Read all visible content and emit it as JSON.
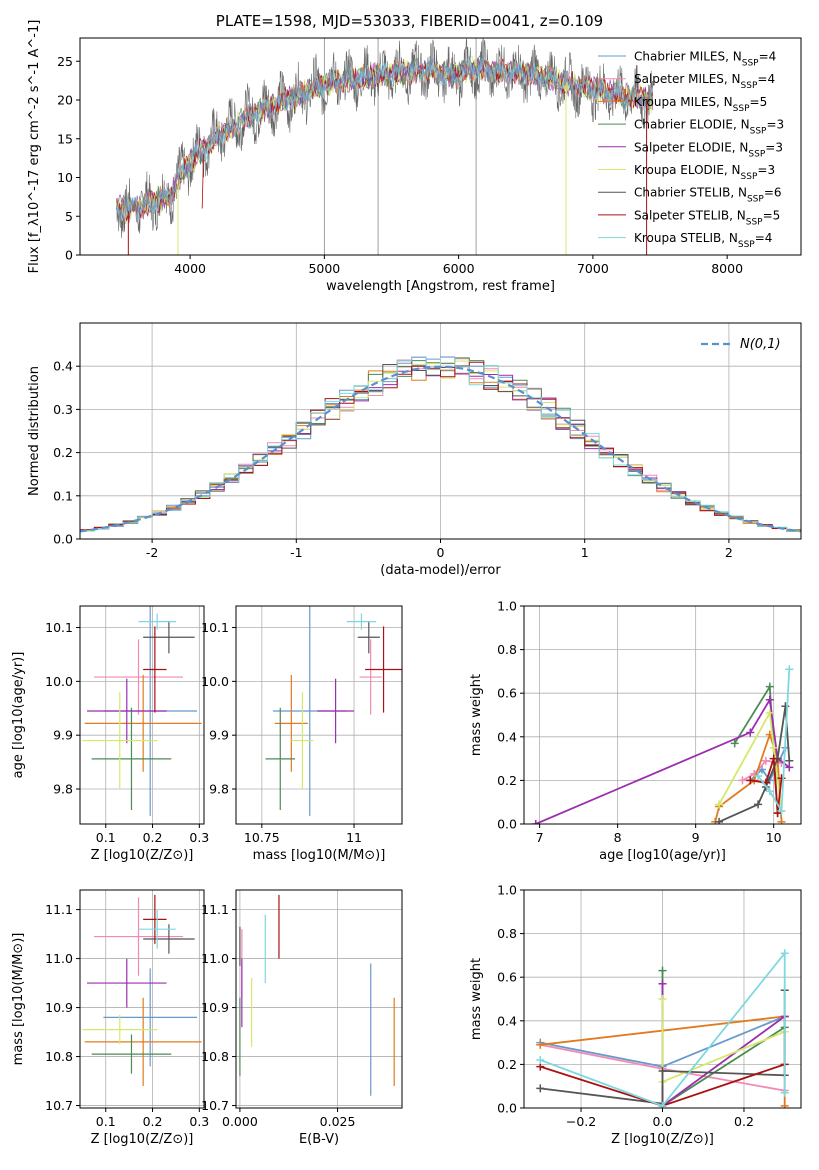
{
  "title": "PLATE=1598, MJD=53033, FIBERID=0041, z=0.109",
  "series_colors": [
    "#6699cc",
    "#f28ab3",
    "#e07b20",
    "#4e8a55",
    "#9b2fae",
    "#d4e96a",
    "#555555",
    "#aa1111",
    "#7fd8df"
  ],
  "chart_data": [
    {
      "type": "line",
      "name": "spectrum",
      "xlabel": "wavelength [Angstrom, rest frame]",
      "ylabel": "Flux [f_λ10^-17 erg cm^-2 s^-1 A^-1]",
      "xlim": [
        3180,
        8550
      ],
      "ylim": [
        0,
        28
      ],
      "xticks": [
        4000,
        5000,
        6000,
        7000,
        8000
      ],
      "yticks": [
        0,
        5,
        10,
        15,
        20,
        25
      ],
      "vlines": [
        5000,
        5400,
        6130
      ],
      "continuum": {
        "x": [
          3450,
          3550,
          3700,
          3850,
          3950,
          4050,
          4200,
          4350,
          4500,
          4650,
          4800,
          4950,
          5100,
          5250,
          5400,
          5600,
          5800,
          5950,
          6100,
          6300,
          6500,
          6700,
          6900,
          7100,
          7300,
          7450
        ],
        "y": [
          6.5,
          5.6,
          6.8,
          7.6,
          11.0,
          13.0,
          15.2,
          17.0,
          18.5,
          19.6,
          20.5,
          21.8,
          22.4,
          22.8,
          23.2,
          23.6,
          23.9,
          23.0,
          24.1,
          23.7,
          23.4,
          22.7,
          21.8,
          21.0,
          20.4,
          20.0
        ]
      },
      "legend": [
        {
          "label": "Chabrier MILES, N_SSP=4",
          "sub": "SSP",
          "pre": "Chabrier MILES, N",
          "post": "=4"
        },
        {
          "label": "Salpeter MILES, N_SSP=4",
          "pre": "Salpeter MILES, N",
          "post": "=4"
        },
        {
          "label": "Kroupa MILES, N_SSP=5",
          "pre": "Kroupa MILES, N",
          "post": "=5"
        },
        {
          "label": "Chabrier ELODIE, N_SSP=3",
          "pre": "Chabrier ELODIE, N",
          "post": "=3"
        },
        {
          "label": "Salpeter ELODIE, N_SSP=3",
          "pre": "Salpeter ELODIE, N",
          "post": "=3"
        },
        {
          "label": "Kroupa ELODIE, N_SSP=3",
          "pre": "Kroupa ELODIE, N",
          "post": "=3"
        },
        {
          "label": "Chabrier STELIB, N_SSP=6",
          "pre": "Chabrier STELIB, N",
          "post": "=6"
        },
        {
          "label": "Salpeter STELIB, N_SSP=5",
          "pre": "Salpeter STELIB, N",
          "post": "=5"
        },
        {
          "label": "Kroupa STELIB, N_SSP=4",
          "pre": "Kroupa STELIB, N",
          "post": "=4"
        }
      ],
      "legend_subscript": "SSP"
    },
    {
      "type": "histogram",
      "name": "residuals",
      "xlabel": "(data-model)/error",
      "ylabel": "Normed distribution",
      "xlim": [
        -2.5,
        2.5
      ],
      "ylim": [
        0,
        0.5
      ],
      "xticks": [
        -2,
        -1,
        0,
        1,
        2
      ],
      "yticks": [
        0.0,
        0.1,
        0.2,
        0.3,
        0.4
      ],
      "reference_label": "N(0,1)",
      "bin_edges_start": -2.5,
      "bin_width": 0.1
    },
    {
      "type": "scatter",
      "name": "age-vs-Z",
      "xlabel": "Z [log10(Z/Z⊙)]",
      "ylabel": "age [log10(age/yr)]",
      "xlim": [
        0.045,
        0.31
      ],
      "ylim": [
        9.735,
        10.14
      ],
      "xticks": [
        0.1,
        0.2,
        0.3
      ],
      "yticks": [
        9.8,
        9.9,
        10.0,
        10.1
      ],
      "points": [
        {
          "x": 0.195,
          "y": 9.945,
          "xerr": 0.1,
          "yerr": 0.195
        },
        {
          "x": 0.17,
          "y": 10.008,
          "xerr": 0.095,
          "yerr": 0.07
        },
        {
          "x": 0.18,
          "y": 9.922,
          "xerr": 0.125,
          "yerr": 0.09
        },
        {
          "x": 0.155,
          "y": 9.856,
          "xerr": 0.085,
          "yerr": 0.095
        },
        {
          "x": 0.145,
          "y": 9.945,
          "xerr": 0.085,
          "yerr": 0.06
        },
        {
          "x": 0.13,
          "y": 9.89,
          "xerr": 0.08,
          "yerr": 0.09
        },
        {
          "x": 0.235,
          "y": 10.082,
          "xerr": 0.055,
          "yerr": 0.03
        },
        {
          "x": 0.205,
          "y": 10.022,
          "xerr": 0.025,
          "yerr": 0.08
        },
        {
          "x": 0.21,
          "y": 10.111,
          "xerr": 0.04,
          "yerr": 0.015
        }
      ]
    },
    {
      "type": "scatter",
      "name": "age-vs-mass",
      "xlabel": "mass [log10(M/M⊙)]",
      "xlim": [
        10.68,
        11.13
      ],
      "ylim": [
        9.735,
        10.14
      ],
      "xticks": [
        10.75,
        11.0
      ],
      "yticks": [
        9.8,
        9.9,
        10.0,
        10.1
      ],
      "points": [
        {
          "x": 10.88,
          "y": 9.945,
          "xerr": 0.1,
          "yerr": 0.195
        },
        {
          "x": 11.045,
          "y": 10.008,
          "xerr": 0.03,
          "yerr": 0.07
        },
        {
          "x": 10.83,
          "y": 9.922,
          "xerr": 0.045,
          "yerr": 0.09
        },
        {
          "x": 10.8,
          "y": 9.856,
          "xerr": 0.04,
          "yerr": 0.095
        },
        {
          "x": 10.95,
          "y": 9.945,
          "xerr": 0.05,
          "yerr": 0.06
        },
        {
          "x": 10.86,
          "y": 9.89,
          "xerr": 0.03,
          "yerr": 0.09
        },
        {
          "x": 11.04,
          "y": 10.082,
          "xerr": 0.03,
          "yerr": 0.03
        },
        {
          "x": 11.08,
          "y": 10.022,
          "xerr": 0.05,
          "yerr": 0.08
        },
        {
          "x": 11.02,
          "y": 10.111,
          "xerr": 0.04,
          "yerr": 0.015
        }
      ]
    },
    {
      "type": "line",
      "name": "mass-weight-vs-age",
      "xlabel": "age [log10(age/yr)]",
      "ylabel": "mass weight",
      "xlim": [
        6.8,
        10.35
      ],
      "ylim": [
        0,
        1
      ],
      "xticks": [
        7,
        8,
        9,
        10
      ],
      "yticks": [
        0.0,
        0.2,
        0.4,
        0.6,
        0.8,
        1.0
      ],
      "series": [
        {
          "x": [
            9.7,
            9.85,
            9.95,
            10.15
          ],
          "y": [
            0.2,
            0.25,
            0.2,
            0.35
          ]
        },
        {
          "x": [
            9.6,
            9.75,
            9.9,
            10.1
          ],
          "y": [
            0.2,
            0.23,
            0.29,
            0.28
          ]
        },
        {
          "x": [
            9.25,
            9.3,
            9.75,
            9.95,
            10.05,
            10.1
          ],
          "y": [
            0.01,
            0.08,
            0.2,
            0.41,
            0.3,
            0.01
          ]
        },
        {
          "x": [
            9.5,
            9.95,
            10.05
          ],
          "y": [
            0.37,
            0.63,
            0.05
          ]
        },
        {
          "x": [
            6.95,
            9.7,
            9.95,
            10.05,
            10.2
          ],
          "y": [
            0.0,
            0.42,
            0.57,
            0.3,
            0.26
          ]
        },
        {
          "x": [
            9.3,
            9.95,
            10.0,
            10.1
          ],
          "y": [
            0.09,
            0.51,
            0.35,
            0.06
          ]
        },
        {
          "x": [
            9.3,
            9.8,
            9.9,
            10.05,
            10.15,
            10.2
          ],
          "y": [
            0.01,
            0.09,
            0.17,
            0.3,
            0.54,
            0.29
          ]
        },
        {
          "x": [
            9.7,
            9.9,
            10.0,
            10.05,
            10.1
          ],
          "y": [
            0.2,
            0.19,
            0.3,
            0.05,
            0.21
          ]
        },
        {
          "x": [
            9.8,
            9.95,
            10.1,
            10.2
          ],
          "y": [
            0.22,
            0.15,
            0.06,
            0.71
          ]
        }
      ]
    },
    {
      "type": "scatter",
      "name": "mass-vs-Z",
      "xlabel": "Z [log10(Z/Z⊙)]",
      "ylabel": "mass [log10(M/M⊙)]",
      "xlim": [
        0.045,
        0.31
      ],
      "ylim": [
        10.695,
        11.14
      ],
      "xticks": [
        0.1,
        0.2,
        0.3
      ],
      "yticks": [
        10.7,
        10.8,
        10.9,
        11.0,
        11.1
      ],
      "points": [
        {
          "x": 0.195,
          "y": 10.88,
          "xerr": 0.1,
          "yerr": 0.1
        },
        {
          "x": 0.17,
          "y": 11.045,
          "xerr": 0.095,
          "yerr": 0.08
        },
        {
          "x": 0.18,
          "y": 10.83,
          "xerr": 0.125,
          "yerr": 0.09
        },
        {
          "x": 0.155,
          "y": 10.805,
          "xerr": 0.085,
          "yerr": 0.04
        },
        {
          "x": 0.145,
          "y": 10.95,
          "xerr": 0.085,
          "yerr": 0.05
        },
        {
          "x": 0.13,
          "y": 10.855,
          "xerr": 0.08,
          "yerr": 0.03
        },
        {
          "x": 0.235,
          "y": 11.04,
          "xerr": 0.055,
          "yerr": 0.03
        },
        {
          "x": 0.205,
          "y": 11.08,
          "xerr": 0.025,
          "yerr": 0.05
        },
        {
          "x": 0.21,
          "y": 11.06,
          "xerr": 0.04,
          "yerr": 0.04
        }
      ]
    },
    {
      "type": "scatter",
      "name": "mass-vs-EBV",
      "xlabel": "E(B-V)",
      "xlim": [
        -0.001,
        0.0415
      ],
      "ylim": [
        10.695,
        11.14
      ],
      "xticks": [
        0.0,
        0.025
      ],
      "xticklabels": [
        "0.000",
        "0.025"
      ],
      "yticks": [
        10.7,
        10.8,
        10.9,
        11.0,
        11.1
      ],
      "points": [
        {
          "x": 0.0335,
          "y": 10.855,
          "yerr": 0.135
        },
        {
          "x": 0.0005,
          "y": 10.99,
          "yerr": 0.07
        },
        {
          "x": 0.0395,
          "y": 10.83,
          "yerr": 0.09
        },
        {
          "x": 0.0,
          "y": 10.84,
          "yerr": 0.08
        },
        {
          "x": 0.0005,
          "y": 10.93,
          "yerr": 0.07
        },
        {
          "x": 0.003,
          "y": 10.89,
          "yerr": 0.07
        },
        {
          "x": 0.0,
          "y": 11.025,
          "yerr": 0.04
        },
        {
          "x": 0.01,
          "y": 11.065,
          "yerr": 0.065
        },
        {
          "x": 0.0065,
          "y": 11.02,
          "yerr": 0.07
        }
      ]
    },
    {
      "type": "line",
      "name": "mass-weight-vs-Z",
      "xlabel": "Z [log10(Z/Z⊙)]",
      "ylabel": "mass weight",
      "xlim": [
        -0.34,
        0.34
      ],
      "ylim": [
        0,
        1
      ],
      "xticks": [
        -0.2,
        0.0,
        0.2
      ],
      "xticklabels": [
        "−0.2",
        "0.0",
        "0.2"
      ],
      "yticks": [
        0.0,
        0.2,
        0.4,
        0.6,
        0.8,
        1.0
      ],
      "series": [
        {
          "x": [
            -0.3,
            0.0,
            0.3
          ],
          "y": [
            0.3,
            0.19,
            0.42
          ]
        },
        {
          "x": [
            -0.3,
            0.0,
            0.3
          ],
          "y": [
            0.29,
            0.18,
            0.08
          ]
        },
        {
          "x": [
            -0.3,
            0.3,
            0.3
          ],
          "y": [
            0.29,
            0.42,
            0.01
          ]
        },
        {
          "x": [
            0.0,
            0.0,
            0.3
          ],
          "y": [
            0.63,
            0.01,
            0.37
          ]
        },
        {
          "x": [
            0.0,
            0.0,
            0.3
          ],
          "y": [
            0.57,
            0.01,
            0.42
          ]
        },
        {
          "x": [
            0.0,
            0.0,
            0.3
          ],
          "y": [
            0.5,
            0.12,
            0.35
          ]
        },
        {
          "x": [
            -0.3,
            0.0,
            0.0,
            0.3,
            0.3
          ],
          "y": [
            0.09,
            0.02,
            0.17,
            0.15,
            0.54
          ]
        },
        {
          "x": [
            -0.3,
            0.0,
            0.3
          ],
          "y": [
            0.19,
            0.01,
            0.2
          ]
        },
        {
          "x": [
            -0.3,
            0.0,
            0.3,
            0.3
          ],
          "y": [
            0.22,
            0.01,
            0.71,
            0.07
          ]
        }
      ]
    }
  ]
}
